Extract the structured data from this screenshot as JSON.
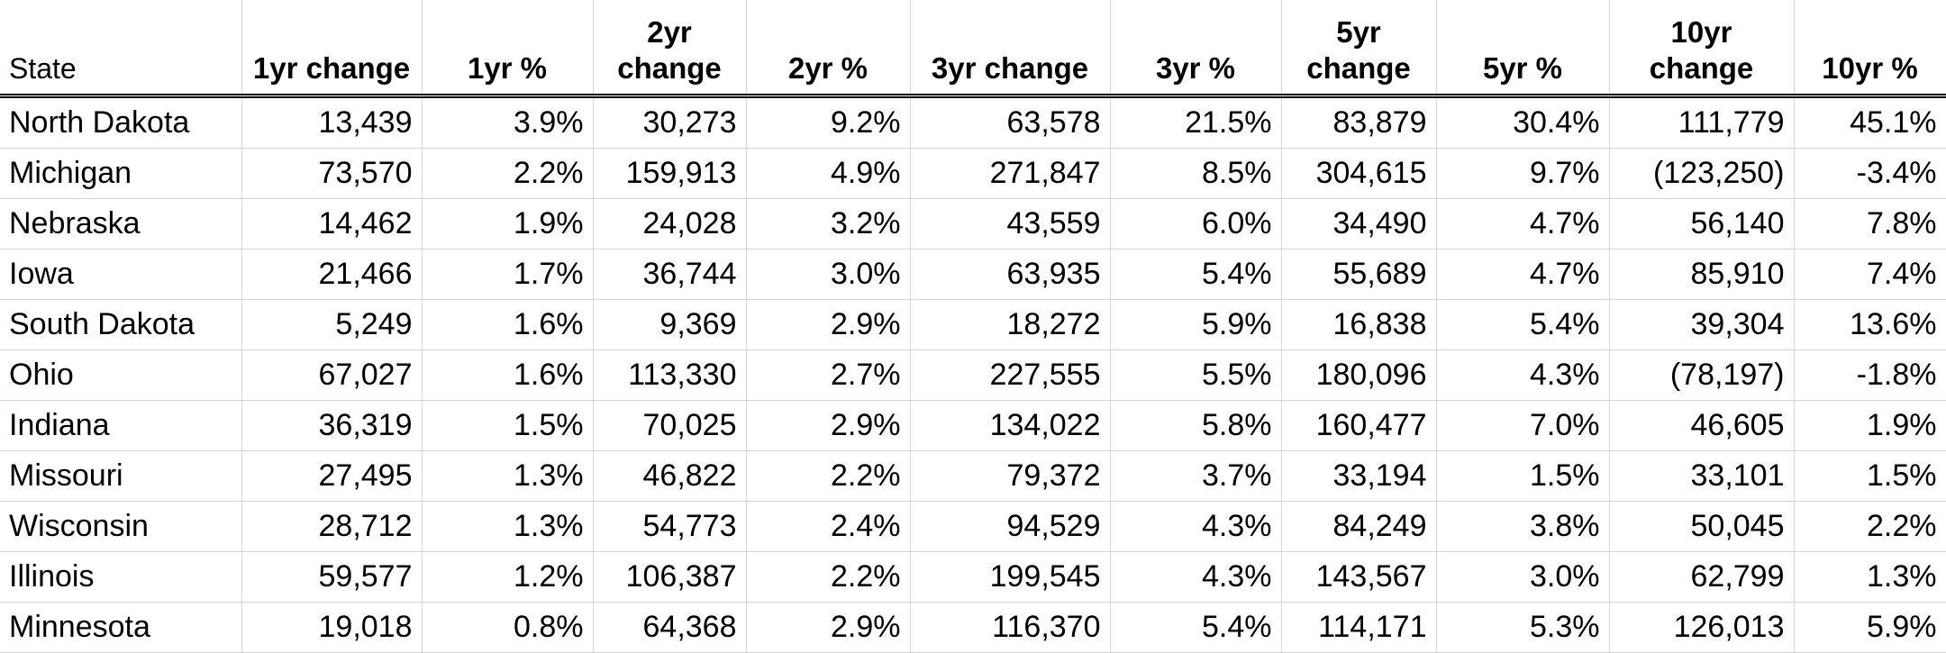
{
  "headers": {
    "state": "State",
    "c1": "1yr change",
    "p1": "1yr %",
    "c2": "2yr change",
    "p2": "2yr %",
    "c3": "3yr change",
    "p3": "3yr %",
    "c5": "5yr change",
    "p5": "5yr %",
    "c10": "10yr change",
    "p10": "10yr %"
  },
  "rows": [
    {
      "state": "North Dakota",
      "c1": "13,439",
      "p1": "3.9%",
      "c2": "30,273",
      "p2": "9.2%",
      "c3": "63,578",
      "p3": "21.5%",
      "c5": "83,879",
      "p5": "30.4%",
      "c10": "111,779",
      "p10": "45.1%"
    },
    {
      "state": "Michigan",
      "c1": "73,570",
      "p1": "2.2%",
      "c2": "159,913",
      "p2": "4.9%",
      "c3": "271,847",
      "p3": "8.5%",
      "c5": "304,615",
      "p5": "9.7%",
      "c10": "(123,250)",
      "p10": "-3.4%"
    },
    {
      "state": "Nebraska",
      "c1": "14,462",
      "p1": "1.9%",
      "c2": "24,028",
      "p2": "3.2%",
      "c3": "43,559",
      "p3": "6.0%",
      "c5": "34,490",
      "p5": "4.7%",
      "c10": "56,140",
      "p10": "7.8%"
    },
    {
      "state": "Iowa",
      "c1": "21,466",
      "p1": "1.7%",
      "c2": "36,744",
      "p2": "3.0%",
      "c3": "63,935",
      "p3": "5.4%",
      "c5": "55,689",
      "p5": "4.7%",
      "c10": "85,910",
      "p10": "7.4%"
    },
    {
      "state": "South Dakota",
      "c1": "5,249",
      "p1": "1.6%",
      "c2": "9,369",
      "p2": "2.9%",
      "c3": "18,272",
      "p3": "5.9%",
      "c5": "16,838",
      "p5": "5.4%",
      "c10": "39,304",
      "p10": "13.6%"
    },
    {
      "state": "Ohio",
      "c1": "67,027",
      "p1": "1.6%",
      "c2": "113,330",
      "p2": "2.7%",
      "c3": "227,555",
      "p3": "5.5%",
      "c5": "180,096",
      "p5": "4.3%",
      "c10": "(78,197)",
      "p10": "-1.8%"
    },
    {
      "state": "Indiana",
      "c1": "36,319",
      "p1": "1.5%",
      "c2": "70,025",
      "p2": "2.9%",
      "c3": "134,022",
      "p3": "5.8%",
      "c5": "160,477",
      "p5": "7.0%",
      "c10": "46,605",
      "p10": "1.9%"
    },
    {
      "state": "Missouri",
      "c1": "27,495",
      "p1": "1.3%",
      "c2": "46,822",
      "p2": "2.2%",
      "c3": "79,372",
      "p3": "3.7%",
      "c5": "33,194",
      "p5": "1.5%",
      "c10": "33,101",
      "p10": "1.5%"
    },
    {
      "state": "Wisconsin",
      "c1": "28,712",
      "p1": "1.3%",
      "c2": "54,773",
      "p2": "2.4%",
      "c3": "94,529",
      "p3": "4.3%",
      "c5": "84,249",
      "p5": "3.8%",
      "c10": "50,045",
      "p10": "2.2%"
    },
    {
      "state": "Illinois",
      "c1": "59,577",
      "p1": "1.2%",
      "c2": "106,387",
      "p2": "2.2%",
      "c3": "199,545",
      "p3": "4.3%",
      "c5": "143,567",
      "p5": "3.0%",
      "c10": "62,799",
      "p10": "1.3%"
    },
    {
      "state": "Minnesota",
      "c1": "19,018",
      "p1": "0.8%",
      "c2": "64,368",
      "p2": "2.9%",
      "c3": "116,370",
      "p3": "5.4%",
      "c5": "114,171",
      "p5": "5.3%",
      "c10": "126,013",
      "p10": "5.9%"
    }
  ]
}
